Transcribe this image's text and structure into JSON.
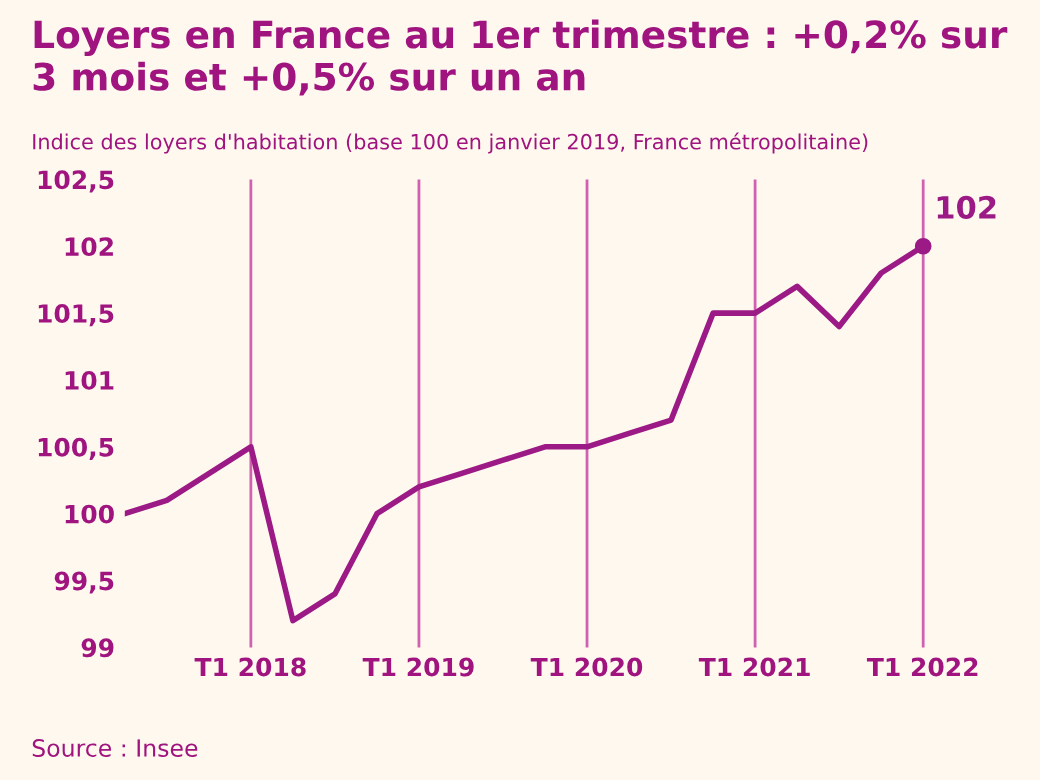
{
  "chart_data": {
    "type": "line",
    "title": "Loyers en France au 1er trimestre : +0,2% sur 3 mois et +0,5% sur un an",
    "subtitle": "Indice des loyers d'habitation (base 100 en janvier 2019, France métropolitaine)",
    "categories": [
      null,
      null,
      null,
      "T1 2018",
      null,
      null,
      null,
      "T1 2019",
      null,
      null,
      null,
      "T1 2020",
      null,
      null,
      null,
      "T1 2021",
      null,
      null,
      null,
      "T1 2022"
    ],
    "series": [
      {
        "color": "#9b1a85",
        "values": [
          100,
          100.1,
          100.3,
          100.5,
          99.2,
          99.4,
          100,
          100.2,
          100.3,
          100.4,
          100.5,
          100.5,
          100.6,
          100.7,
          101.5,
          101.5,
          101.7,
          101.4,
          101.8,
          102
        ],
        "value_labels": [
          null,
          null,
          null,
          null,
          null,
          null,
          null,
          null,
          null,
          null,
          null,
          null,
          null,
          null,
          null,
          null,
          null,
          null,
          null,
          "102"
        ]
      }
    ],
    "ylim": [
      99,
      102.5
    ],
    "yticks": [
      {
        "value": 99,
        "label": "99"
      },
      {
        "value": 99.5,
        "label": "99,5"
      },
      {
        "value": 100,
        "label": "100"
      },
      {
        "value": 100.5,
        "label": "100,5"
      },
      {
        "value": 101,
        "label": "101"
      },
      {
        "value": 101.5,
        "label": "101,5"
      },
      {
        "value": 102,
        "label": "102"
      },
      {
        "value": 102.5,
        "label": "102,5"
      }
    ],
    "grid": "x",
    "legend": false,
    "annotations": [
      "Source : Insee"
    ]
  }
}
